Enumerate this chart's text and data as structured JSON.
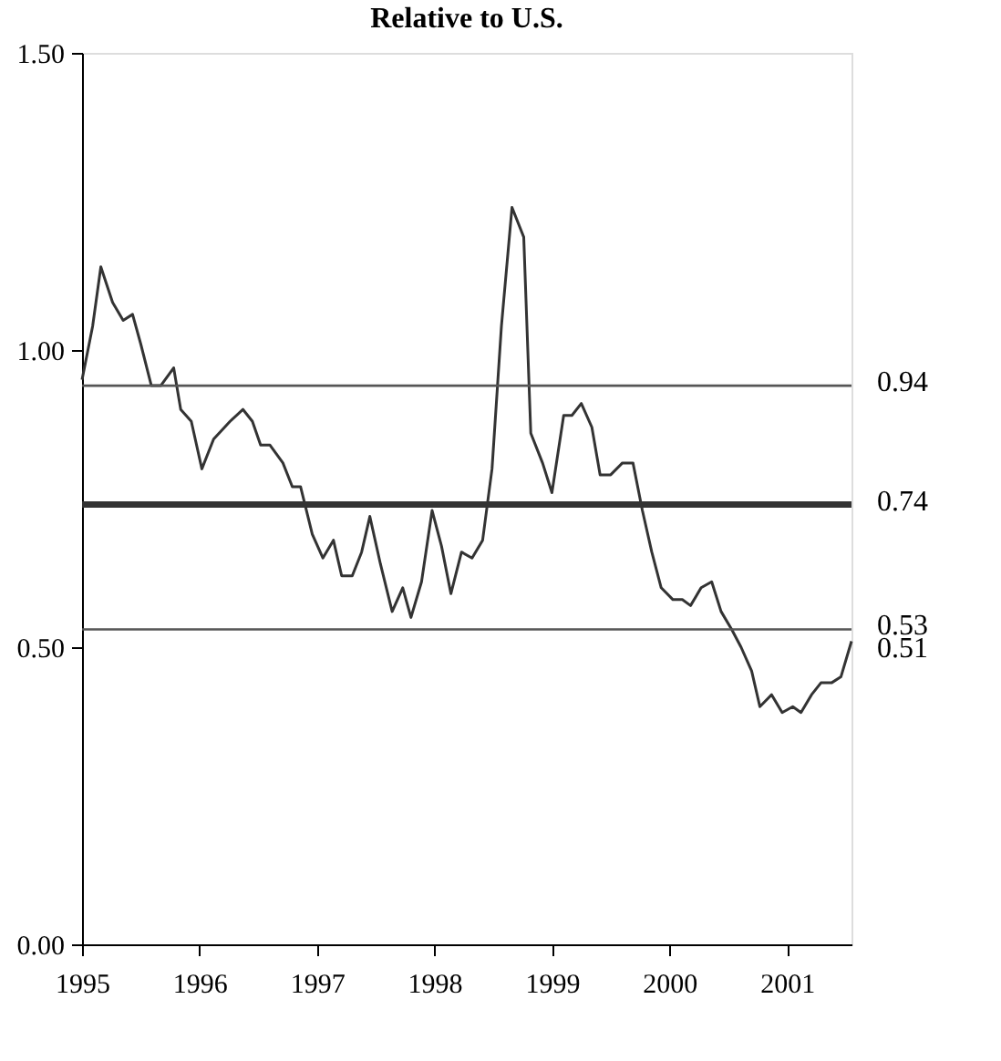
{
  "chart_data": {
    "type": "line",
    "title": "Relative to U.S.",
    "x": [
      1995.0,
      1995.09,
      1995.16,
      1995.26,
      1995.35,
      1995.43,
      1995.5,
      1995.59,
      1995.67,
      1995.78,
      1995.84,
      1995.93,
      1996.02,
      1996.12,
      1996.26,
      1996.37,
      1996.45,
      1996.52,
      1996.6,
      1996.71,
      1996.79,
      1996.86,
      1996.96,
      1997.05,
      1997.14,
      1997.21,
      1997.3,
      1997.38,
      1997.45,
      1997.54,
      1997.64,
      1997.73,
      1997.8,
      1997.89,
      1997.98,
      1998.06,
      1998.14,
      1998.23,
      1998.32,
      1998.41,
      1998.49,
      1998.57,
      1998.66,
      1998.76,
      1998.82,
      1998.92,
      1999.0,
      1999.1,
      1999.17,
      1999.25,
      1999.34,
      1999.41,
      1999.5,
      1999.6,
      1999.69,
      1999.77,
      1999.85,
      1999.93,
      2000.03,
      2000.11,
      2000.18,
      2000.27,
      2000.36,
      2000.44,
      2000.53,
      2000.61,
      2000.7,
      2000.77,
      2000.87,
      2000.96,
      2001.05,
      2001.12,
      2001.21,
      2001.29,
      2001.38,
      2001.46,
      2001.55
    ],
    "series": [
      {
        "color": "#333333",
        "values": [
          0.95,
          1.04,
          1.14,
          1.08,
          1.05,
          1.06,
          1.01,
          0.94,
          0.94,
          0.97,
          0.9,
          0.88,
          0.8,
          0.85,
          0.88,
          0.9,
          0.88,
          0.84,
          0.84,
          0.81,
          0.77,
          0.77,
          0.69,
          0.65,
          0.68,
          0.62,
          0.62,
          0.66,
          0.72,
          0.64,
          0.56,
          0.6,
          0.55,
          0.61,
          0.73,
          0.67,
          0.59,
          0.66,
          0.65,
          0.68,
          0.8,
          1.04,
          1.24,
          1.19,
          0.86,
          0.81,
          0.76,
          0.89,
          0.89,
          0.91,
          0.87,
          0.79,
          0.79,
          0.81,
          0.81,
          0.73,
          0.66,
          0.6,
          0.58,
          0.58,
          0.57,
          0.6,
          0.61,
          0.56,
          0.53,
          0.5,
          0.46,
          0.4,
          0.42,
          0.39,
          0.4,
          0.39,
          0.42,
          0.44,
          0.44,
          0.45,
          0.51
        ]
      }
    ],
    "xlim": [
      1995,
      2001.55
    ],
    "xticks": [
      1995,
      1996,
      1997,
      1998,
      1999,
      2000,
      2001
    ],
    "ylim": [
      0,
      1.5
    ],
    "yticks": [
      {
        "value": 0,
        "label": "0.00"
      },
      {
        "value": 0.5,
        "label": "0.50"
      },
      {
        "value": 1,
        "label": "1.00"
      },
      {
        "value": 1.5,
        "label": "1.50"
      }
    ],
    "ref_lines": [
      {
        "axis": "y",
        "value": 0.94,
        "label": "0.94",
        "color": "#555555"
      },
      {
        "axis": "y",
        "value": 0.74,
        "label": "0.74",
        "color": "#333333"
      },
      {
        "axis": "y",
        "value": 0.53,
        "label": "0.53",
        "color": "#555555"
      }
    ],
    "annotations": [
      {
        "text": "0.51",
        "x": 2001.55,
        "y": 0.51
      }
    ],
    "grid": false,
    "marker": "none",
    "line_style": "solid"
  }
}
